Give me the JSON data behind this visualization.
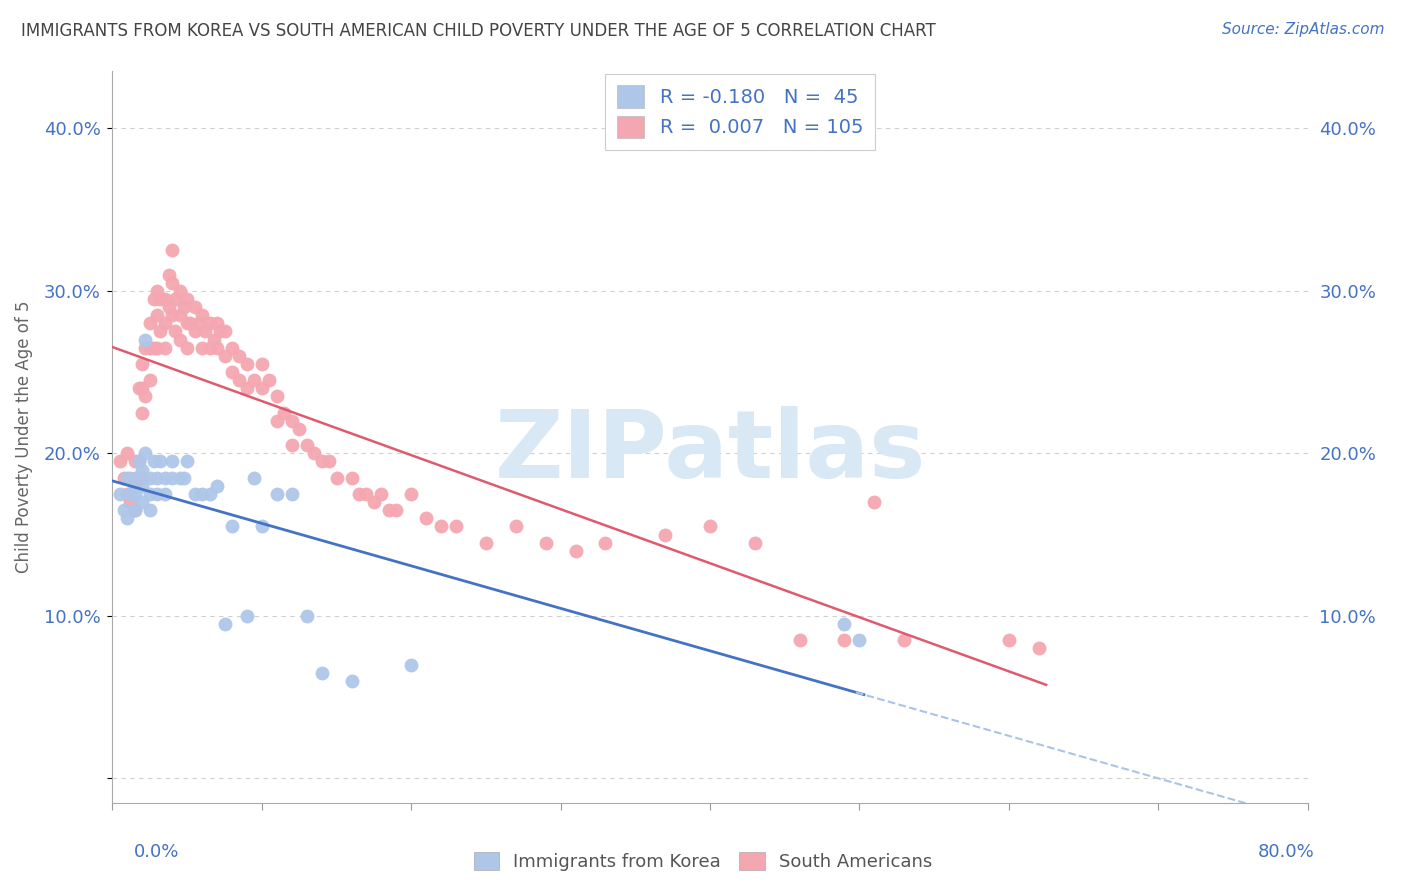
{
  "title": "IMMIGRANTS FROM KOREA VS SOUTH AMERICAN CHILD POVERTY UNDER THE AGE OF 5 CORRELATION CHART",
  "source": "Source: ZipAtlas.com",
  "ylabel": "Child Poverty Under the Age of 5",
  "yticks": [
    0.0,
    0.1,
    0.2,
    0.3,
    0.4
  ],
  "ytick_labels": [
    "",
    "10.0%",
    "20.0%",
    "30.0%",
    "40.0%"
  ],
  "xlim": [
    0.0,
    0.8
  ],
  "ylim": [
    -0.015,
    0.435
  ],
  "korea_R": -0.18,
  "korea_N": 45,
  "sa_R": 0.007,
  "sa_N": 105,
  "korea_color": "#aec6e8",
  "sa_color": "#f4a7b0",
  "korea_line_color": "#4472c4",
  "sa_line_color": "#e05a6e",
  "dashed_line_color": "#aac4e8",
  "legend_text_color": "#4472c4",
  "grid_color": "#d0d0d0",
  "title_color": "#444444",
  "watermark_color": "#d8e8f5",
  "korea_scatter_x": [
    0.005,
    0.008,
    0.01,
    0.01,
    0.012,
    0.015,
    0.015,
    0.015,
    0.018,
    0.02,
    0.02,
    0.02,
    0.022,
    0.022,
    0.025,
    0.025,
    0.025,
    0.028,
    0.03,
    0.03,
    0.032,
    0.035,
    0.035,
    0.04,
    0.04,
    0.045,
    0.048,
    0.05,
    0.055,
    0.06,
    0.065,
    0.07,
    0.075,
    0.08,
    0.09,
    0.095,
    0.1,
    0.11,
    0.12,
    0.13,
    0.14,
    0.16,
    0.2,
    0.49,
    0.5
  ],
  "korea_scatter_y": [
    0.175,
    0.165,
    0.185,
    0.16,
    0.175,
    0.185,
    0.175,
    0.165,
    0.195,
    0.19,
    0.18,
    0.17,
    0.2,
    0.27,
    0.185,
    0.175,
    0.165,
    0.195,
    0.185,
    0.175,
    0.195,
    0.185,
    0.175,
    0.195,
    0.185,
    0.185,
    0.185,
    0.195,
    0.175,
    0.175,
    0.175,
    0.18,
    0.095,
    0.155,
    0.1,
    0.185,
    0.155,
    0.175,
    0.175,
    0.1,
    0.065,
    0.06,
    0.07,
    0.095,
    0.085
  ],
  "sa_scatter_x": [
    0.005,
    0.008,
    0.01,
    0.01,
    0.012,
    0.012,
    0.015,
    0.015,
    0.015,
    0.018,
    0.018,
    0.02,
    0.02,
    0.02,
    0.02,
    0.022,
    0.022,
    0.025,
    0.025,
    0.025,
    0.028,
    0.028,
    0.03,
    0.03,
    0.03,
    0.032,
    0.032,
    0.035,
    0.035,
    0.035,
    0.038,
    0.038,
    0.04,
    0.04,
    0.04,
    0.042,
    0.042,
    0.045,
    0.045,
    0.045,
    0.048,
    0.05,
    0.05,
    0.05,
    0.052,
    0.055,
    0.055,
    0.058,
    0.06,
    0.06,
    0.062,
    0.065,
    0.065,
    0.068,
    0.07,
    0.07,
    0.072,
    0.075,
    0.075,
    0.08,
    0.08,
    0.085,
    0.085,
    0.09,
    0.09,
    0.095,
    0.1,
    0.1,
    0.105,
    0.11,
    0.11,
    0.115,
    0.12,
    0.12,
    0.125,
    0.13,
    0.135,
    0.14,
    0.145,
    0.15,
    0.16,
    0.165,
    0.17,
    0.175,
    0.18,
    0.185,
    0.19,
    0.2,
    0.21,
    0.22,
    0.23,
    0.25,
    0.27,
    0.29,
    0.31,
    0.33,
    0.37,
    0.4,
    0.43,
    0.46,
    0.49,
    0.51,
    0.53,
    0.6,
    0.62
  ],
  "sa_scatter_y": [
    0.195,
    0.185,
    0.2,
    0.175,
    0.185,
    0.17,
    0.195,
    0.18,
    0.165,
    0.24,
    0.195,
    0.255,
    0.24,
    0.225,
    0.185,
    0.265,
    0.235,
    0.28,
    0.265,
    0.245,
    0.295,
    0.265,
    0.3,
    0.285,
    0.265,
    0.295,
    0.275,
    0.295,
    0.28,
    0.265,
    0.31,
    0.29,
    0.325,
    0.305,
    0.285,
    0.295,
    0.275,
    0.3,
    0.285,
    0.27,
    0.29,
    0.295,
    0.28,
    0.265,
    0.28,
    0.29,
    0.275,
    0.28,
    0.285,
    0.265,
    0.275,
    0.28,
    0.265,
    0.27,
    0.28,
    0.265,
    0.275,
    0.275,
    0.26,
    0.265,
    0.25,
    0.26,
    0.245,
    0.255,
    0.24,
    0.245,
    0.255,
    0.24,
    0.245,
    0.235,
    0.22,
    0.225,
    0.22,
    0.205,
    0.215,
    0.205,
    0.2,
    0.195,
    0.195,
    0.185,
    0.185,
    0.175,
    0.175,
    0.17,
    0.175,
    0.165,
    0.165,
    0.175,
    0.16,
    0.155,
    0.155,
    0.145,
    0.155,
    0.145,
    0.14,
    0.145,
    0.15,
    0.155,
    0.145,
    0.085,
    0.085,
    0.17,
    0.085,
    0.085,
    0.08
  ]
}
